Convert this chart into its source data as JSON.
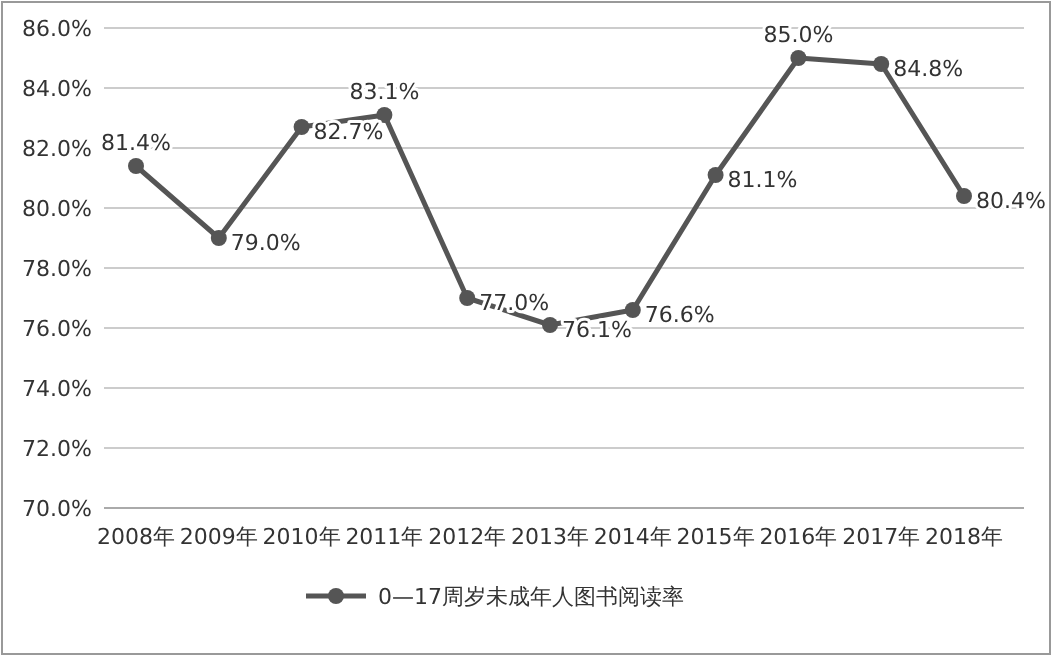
{
  "chart_data": {
    "type": "line",
    "categories": [
      "2008年",
      "2009年",
      "2010年",
      "2011年",
      "2012年",
      "2013年",
      "2014年",
      "2015年",
      "2016年",
      "2017年",
      "2018年"
    ],
    "series": [
      {
        "name": "0—17周岁未成年人图书阅读率",
        "color": "#555555",
        "values": [
          81.4,
          79.0,
          82.7,
          83.1,
          77.0,
          76.1,
          76.6,
          81.1,
          85.0,
          84.8,
          80.4
        ],
        "value_labels": [
          "81.4%",
          "79.0%",
          "82.7%",
          "83.1%",
          "77.0%",
          "76.1%",
          "76.6%",
          "81.1%",
          "85.0%",
          "84.8%",
          "80.4%"
        ]
      }
    ],
    "ylim": [
      70,
      86
    ],
    "yticks": [
      {
        "value": 70,
        "label": "70.0%"
      },
      {
        "value": 72,
        "label": "72.0%"
      },
      {
        "value": 74,
        "label": "74.0%"
      },
      {
        "value": 76,
        "label": "76.0%"
      },
      {
        "value": 78,
        "label": "78.0%"
      },
      {
        "value": 80,
        "label": "80.0%"
      },
      {
        "value": 82,
        "label": "82.0%"
      },
      {
        "value": 84,
        "label": "84.0%"
      },
      {
        "value": 86,
        "label": "86.0%"
      }
    ],
    "grid": "y",
    "legend": "bottom",
    "marker": "circle",
    "line_style": "solid"
  }
}
